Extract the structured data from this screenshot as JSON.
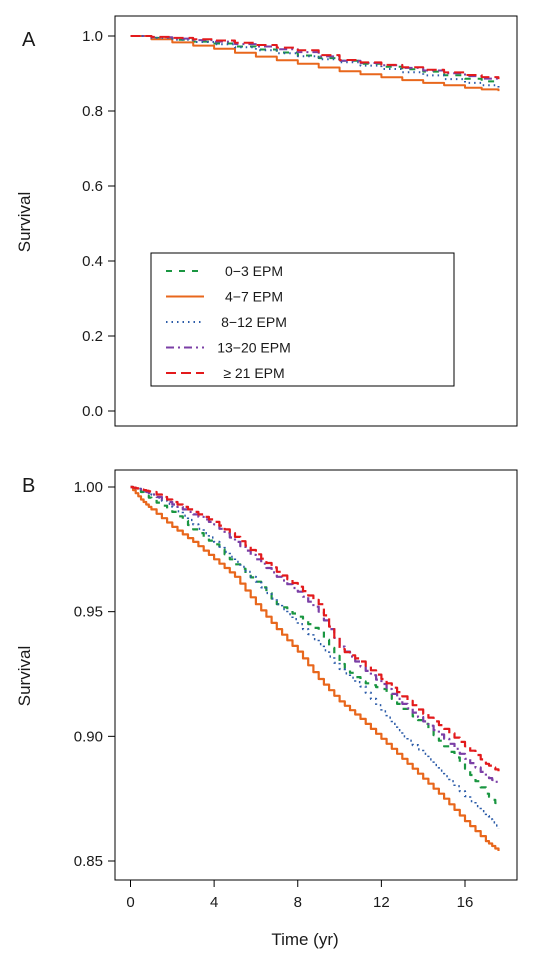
{
  "chart_data": [
    {
      "panel_label": "A",
      "type": "line",
      "xlabel": "",
      "ylabel": "Survival",
      "xlim": [
        0,
        18
      ],
      "ylim": [
        0,
        1
      ],
      "y_ticks": [
        "0.0",
        "0.2",
        "0.4",
        "0.6",
        "0.8",
        "1.0"
      ],
      "x_ticks": [],
      "grid": false,
      "legend_position": "center-left",
      "series": [
        {
          "name": "0−3 EPM",
          "color": "#1a9641",
          "dash": "6,7",
          "width": 2,
          "x": [
            0,
            2,
            4,
            6,
            8,
            10,
            12,
            14,
            16,
            17.6
          ],
          "y": [
            1.0,
            0.99,
            0.98,
            0.964,
            0.948,
            0.934,
            0.918,
            0.905,
            0.886,
            0.872
          ]
        },
        {
          "name": "4−7 EPM",
          "color": "#e8671c",
          "dash": "",
          "width": 2,
          "x": [
            0,
            2,
            4,
            6,
            8,
            10,
            12,
            14,
            16,
            17.6
          ],
          "y": [
            1.0,
            0.983,
            0.966,
            0.945,
            0.926,
            0.906,
            0.89,
            0.875,
            0.862,
            0.853
          ]
        },
        {
          "name": "8−12 EPM",
          "color": "#2b5ba8",
          "dash": "1.5,4",
          "width": 2,
          "x": [
            0,
            2,
            4,
            6,
            8,
            10,
            12,
            14,
            16,
            17.6
          ],
          "y": [
            1.0,
            0.99,
            0.978,
            0.962,
            0.946,
            0.93,
            0.912,
            0.895,
            0.875,
            0.862
          ]
        },
        {
          "name": "13−20 EPM",
          "color": "#7b3fa6",
          "dash": "8,4,2,4",
          "width": 2,
          "x": [
            0,
            2,
            4,
            6,
            8,
            10,
            12,
            14,
            16,
            17.6
          ],
          "y": [
            1.0,
            0.993,
            0.985,
            0.972,
            0.957,
            0.934,
            0.922,
            0.908,
            0.893,
            0.88
          ]
        },
        {
          "name": "≥ 21 EPM",
          "color": "#e31a1c",
          "dash": "10,5",
          "width": 2,
          "x": [
            0,
            2,
            4,
            6,
            8,
            10,
            12,
            14,
            16,
            17.6
          ],
          "y": [
            1.0,
            0.995,
            0.988,
            0.976,
            0.962,
            0.936,
            0.923,
            0.91,
            0.896,
            0.885
          ]
        }
      ]
    },
    {
      "panel_label": "B",
      "type": "line",
      "xlabel": "Time (yr)",
      "ylabel": "Survival",
      "xlim": [
        0,
        18
      ],
      "ylim": [
        0.85,
        1.0
      ],
      "y_ticks": [
        "0.85",
        "0.90",
        "0.95",
        "1.00"
      ],
      "x_ticks": [
        "0",
        "4",
        "8",
        "12",
        "16"
      ],
      "grid": false,
      "legend_position": "none",
      "series": [
        {
          "name": "0−3 EPM",
          "color": "#1a9641",
          "dash": "6,7",
          "width": 2.2,
          "x": [
            0,
            0.5,
            1,
            2,
            3,
            4,
            5,
            6,
            7,
            8,
            9,
            10,
            11,
            12,
            13,
            14,
            15,
            16,
            17,
            17.6
          ],
          "y": [
            1.0,
            0.998,
            0.995,
            0.99,
            0.983,
            0.977,
            0.969,
            0.962,
            0.953,
            0.948,
            0.942,
            0.929,
            0.922,
            0.919,
            0.911,
            0.905,
            0.896,
            0.887,
            0.877,
            0.872
          ]
        },
        {
          "name": "4−7 EPM",
          "color": "#e8671c",
          "dash": "",
          "width": 2.2,
          "x": [
            0,
            0.5,
            1,
            2,
            3,
            4,
            5,
            6,
            7,
            8,
            9,
            10,
            11,
            12,
            13,
            14,
            15,
            16,
            17,
            17.6
          ],
          "y": [
            1.0,
            0.995,
            0.991,
            0.984,
            0.978,
            0.971,
            0.964,
            0.953,
            0.943,
            0.934,
            0.923,
            0.914,
            0.907,
            0.899,
            0.891,
            0.883,
            0.875,
            0.866,
            0.858,
            0.854
          ]
        },
        {
          "name": "8−12 EPM",
          "color": "#2b5ba8",
          "dash": "1.5,4",
          "width": 2.2,
          "x": [
            0,
            0.5,
            1,
            2,
            3,
            4,
            5,
            6,
            7,
            8,
            9,
            10,
            11,
            12,
            13,
            14,
            15,
            16,
            17,
            17.6
          ],
          "y": [
            1.0,
            0.999,
            0.997,
            0.992,
            0.985,
            0.978,
            0.97,
            0.962,
            0.953,
            0.945,
            0.937,
            0.927,
            0.92,
            0.91,
            0.9,
            0.893,
            0.884,
            0.876,
            0.868,
            0.863
          ]
        },
        {
          "name": "13−20 EPM",
          "color": "#7b3fa6",
          "dash": "8,4,2,4",
          "width": 2.2,
          "x": [
            0,
            0.5,
            1,
            2,
            3,
            4,
            5,
            6,
            7,
            8,
            9,
            10,
            11,
            12,
            13,
            14,
            15,
            16,
            17,
            17.6
          ],
          "y": [
            1.0,
            0.999,
            0.997,
            0.993,
            0.989,
            0.985,
            0.978,
            0.971,
            0.964,
            0.958,
            0.95,
            0.936,
            0.928,
            0.921,
            0.913,
            0.906,
            0.899,
            0.891,
            0.884,
            0.881
          ]
        },
        {
          "name": "≥ 21 EPM",
          "color": "#e31a1c",
          "dash": "10,5",
          "width": 2.2,
          "x": [
            0,
            0.5,
            1,
            2,
            3,
            4,
            5,
            6,
            7,
            8,
            9,
            10,
            11,
            12,
            13,
            14,
            15,
            16,
            17,
            17.6
          ],
          "y": [
            1.0,
            0.999,
            0.998,
            0.994,
            0.99,
            0.986,
            0.98,
            0.973,
            0.966,
            0.96,
            0.953,
            0.935,
            0.93,
            0.923,
            0.916,
            0.909,
            0.903,
            0.896,
            0.889,
            0.886
          ]
        }
      ]
    }
  ]
}
